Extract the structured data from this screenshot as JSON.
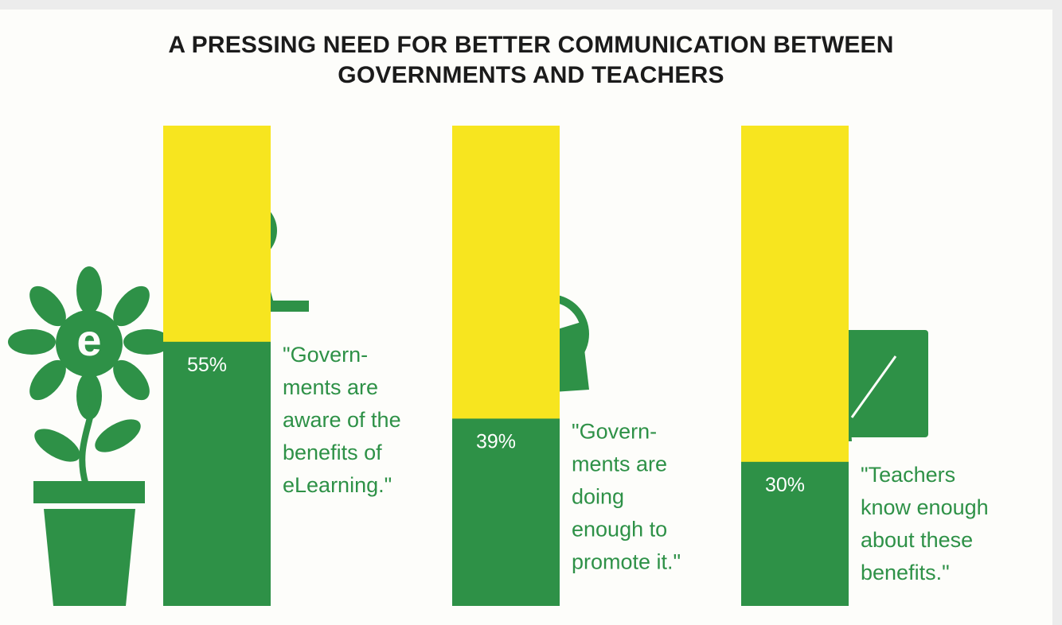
{
  "chart_data": {
    "type": "bar",
    "title": "A PRESSING NEED FOR BETTER COMMUNICATION BETWEEN GOVERNMENTS AND TEACHERS",
    "categories": [
      [
        "\"Govern-",
        "ments are",
        "aware of the",
        "benefits of",
        "eLearning.\""
      ],
      [
        "\"Govern-",
        "ments are",
        "doing",
        "enough to",
        "promote it.\""
      ],
      [
        "\"Teachers",
        "know enough",
        "about these",
        "benefits.\""
      ]
    ],
    "values": [
      55,
      39,
      30
    ],
    "value_labels": [
      "55%",
      "39%",
      "30%"
    ],
    "color": "#2e9147",
    "background_color": "#f7e51f",
    "ylim": [
      0,
      100
    ]
  }
}
